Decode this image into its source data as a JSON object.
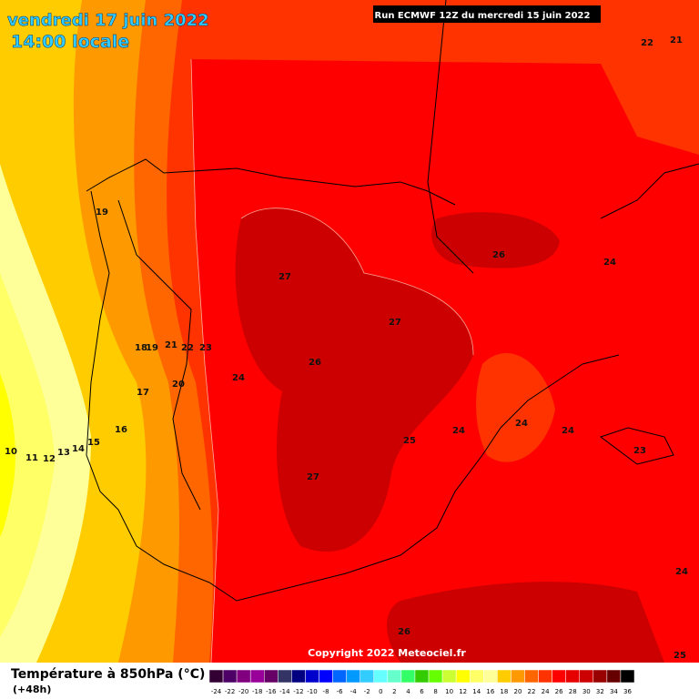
{
  "header": {
    "title": "vendredi 17 juin 2022",
    "subtitle": "14:00 locale",
    "run": "Run ECMWF 12Z du mercredi 15 juin 2022"
  },
  "copyright": "Copyright 2022 Meteociel.fr",
  "contour_labels": [
    "19",
    "18",
    "19",
    "21",
    "22",
    "23",
    "24",
    "20",
    "17",
    "16",
    "15",
    "14",
    "13",
    "12",
    "11",
    "10",
    "27",
    "27",
    "26",
    "26",
    "24",
    "25",
    "24",
    "24",
    "24",
    "23",
    "27",
    "24",
    "26",
    "25",
    "22",
    "21"
  ],
  "legend": {
    "title": "Température à 850hPa (°C)",
    "subtitle": "(+48h)",
    "bins": [
      {
        "label": "-24",
        "color": "#330033"
      },
      {
        "label": "-22",
        "color": "#4d0066"
      },
      {
        "label": "-20",
        "color": "#800080"
      },
      {
        "label": "-18",
        "color": "#990099"
      },
      {
        "label": "-16",
        "color": "#660066"
      },
      {
        "label": "-14",
        "color": "#333366"
      },
      {
        "label": "-12",
        "color": "#000080"
      },
      {
        "label": "-10",
        "color": "#0000cc"
      },
      {
        "label": "-8",
        "color": "#0000ff"
      },
      {
        "label": "-6",
        "color": "#0066ff"
      },
      {
        "label": "-4",
        "color": "#0099ff"
      },
      {
        "label": "-2",
        "color": "#33ccff"
      },
      {
        "label": "0",
        "color": "#66ffff"
      },
      {
        "label": "2",
        "color": "#66ffcc"
      },
      {
        "label": "4",
        "color": "#33ff66"
      },
      {
        "label": "6",
        "color": "#33cc00"
      },
      {
        "label": "8",
        "color": "#66ff00"
      },
      {
        "label": "10",
        "color": "#ccff33"
      },
      {
        "label": "12",
        "color": "#ffff00"
      },
      {
        "label": "14",
        "color": "#ffff66"
      },
      {
        "label": "16",
        "color": "#ffff99"
      },
      {
        "label": "18",
        "color": "#ffcc00"
      },
      {
        "label": "20",
        "color": "#ff9900"
      },
      {
        "label": "22",
        "color": "#ff6600"
      },
      {
        "label": "24",
        "color": "#ff3300"
      },
      {
        "label": "26",
        "color": "#ff0000"
      },
      {
        "label": "28",
        "color": "#e60000"
      },
      {
        "label": "30",
        "color": "#cc0000"
      },
      {
        "label": "32",
        "color": "#990000"
      },
      {
        "label": "34",
        "color": "#660000"
      },
      {
        "label": "36",
        "color": "#000000"
      }
    ]
  }
}
